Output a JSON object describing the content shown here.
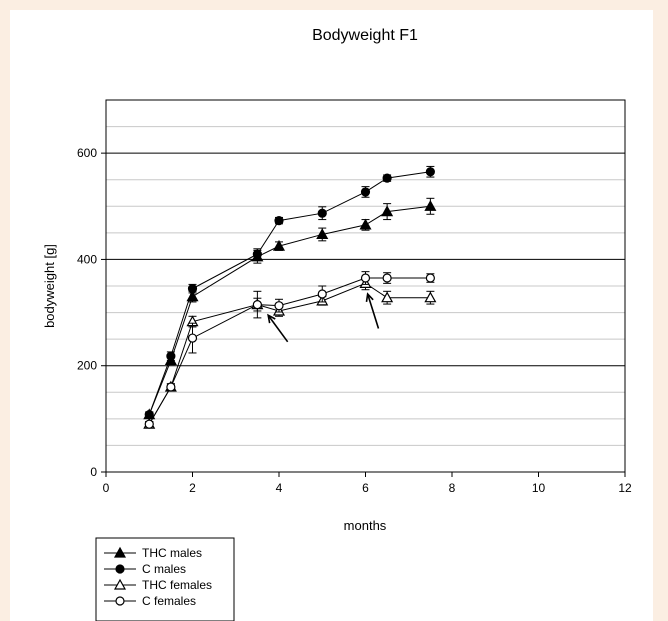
{
  "chart_data": {
    "type": "line",
    "title": "Bodyweight  F1",
    "xlabel": "months",
    "ylabel": "bodyweight [g]",
    "xlim": [
      0,
      12
    ],
    "ylim": [
      0,
      700
    ],
    "xticks": [
      0,
      2,
      4,
      6,
      8,
      10,
      12
    ],
    "yticks": [
      0,
      200,
      400,
      600
    ],
    "minor_grid_step_y": 50,
    "grid": true,
    "legend_position": "bottom-left",
    "series": [
      {
        "name": "THC males",
        "marker": "filled-triangle",
        "x": [
          1,
          1.5,
          2,
          3.5,
          4,
          5,
          6,
          6.5,
          7.5
        ],
        "y": [
          108,
          210,
          330,
          405,
          425,
          447,
          465,
          490,
          500
        ],
        "err": [
          5,
          8,
          10,
          12,
          8,
          12,
          10,
          15,
          15
        ]
      },
      {
        "name": "C males",
        "marker": "filled-circle",
        "x": [
          1,
          1.5,
          2,
          3.5,
          4,
          5,
          6,
          6.5,
          7.5
        ],
        "y": [
          108,
          218,
          345,
          410,
          473,
          487,
          527,
          553,
          565
        ],
        "err": [
          5,
          8,
          8,
          10,
          6,
          12,
          10,
          6,
          10
        ]
      },
      {
        "name": "THC females",
        "marker": "open-triangle",
        "x": [
          1,
          1.5,
          2,
          3.5,
          4,
          5,
          6,
          6.5,
          7.5
        ],
        "y": [
          90,
          160,
          283,
          315,
          303,
          322,
          355,
          328,
          328
        ],
        "err": [
          5,
          6,
          10,
          25,
          10,
          8,
          12,
          12,
          12
        ]
      },
      {
        "name": "C females",
        "marker": "open-circle",
        "x": [
          1,
          1.5,
          2,
          3.5,
          4,
          5,
          6,
          6.5,
          7.5
        ],
        "y": [
          90,
          160,
          252,
          315,
          313,
          335,
          365,
          365,
          365
        ],
        "err": [
          5,
          6,
          28,
          12,
          12,
          15,
          12,
          10,
          8
        ]
      }
    ],
    "annotations": [
      {
        "type": "arrow",
        "tail": [
          4.2,
          245
        ],
        "head": [
          3.75,
          295
        ]
      },
      {
        "type": "arrow",
        "tail": [
          6.3,
          270
        ],
        "head": [
          6.05,
          335
        ]
      }
    ]
  }
}
